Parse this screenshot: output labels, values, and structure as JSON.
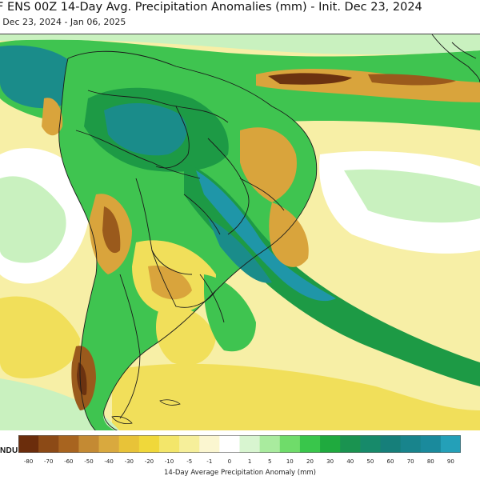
{
  "header": {
    "title": "F ENS 00Z 14-Day Avg. Precipitation Anomalies (mm) - Init. Dec 23, 2024",
    "subtitle": ": Dec 23, 2024 - Jan 06, 2025"
  },
  "logo": {
    "text": "NDUIT"
  },
  "legend": {
    "label": "14-Day Average Precipitation Anomaly (mm)",
    "ticks": [
      "-80",
      "-70",
      "-60",
      "-50",
      "-40",
      "-30",
      "-20",
      "-10",
      "-5",
      "-1",
      "0",
      "1",
      "5",
      "10",
      "20",
      "30",
      "40",
      "50",
      "60",
      "70",
      "80",
      "90"
    ],
    "colors": [
      "#6b2d0c",
      "#8c4a16",
      "#a8641f",
      "#c48a33",
      "#d9a93e",
      "#e8c338",
      "#f0d83a",
      "#f3e66a",
      "#f6ef9a",
      "#fbf6d0",
      "#ffffff",
      "#d8f5d0",
      "#a9eb9e",
      "#6fdc6a",
      "#39c64b",
      "#1faa3e",
      "#1a9350",
      "#178a6a",
      "#167f7a",
      "#18848c",
      "#1a8a9c",
      "#24a0b8"
    ]
  },
  "map": {
    "colors": {
      "ocean_wet": "#c9f1bf",
      "light_green": "#8fe08a",
      "green": "#3fc450",
      "dark_green": "#1d9a45",
      "teal": "#1a8c8a",
      "deep_teal": "#1f96a8",
      "yellow": "#f1df5a",
      "light_yellow": "#f7efa6",
      "orange": "#d9a43c",
      "brown": "#9a5a1c",
      "dark_brown": "#6b3210",
      "white": "#ffffff"
    }
  }
}
